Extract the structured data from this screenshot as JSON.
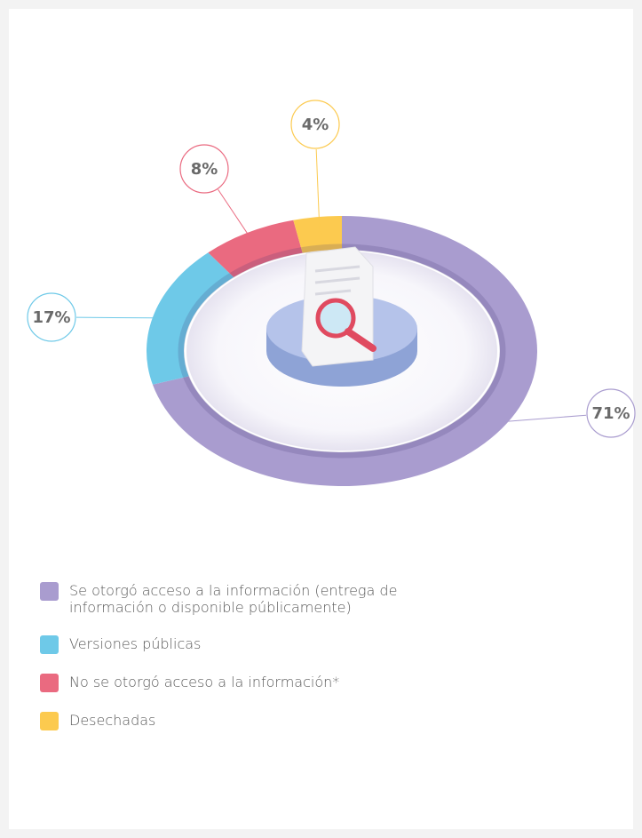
{
  "chart_data": {
    "type": "donut",
    "categories": [
      "Se otorgó acceso a la información (entrega de información o disponible públicamente)",
      "Versiones públicas",
      "No se otorgó acceso a la información*",
      "Desechadas"
    ],
    "values": [
      71,
      17,
      8,
      4
    ],
    "value_labels": [
      "71%",
      "17%",
      "8%",
      "4%"
    ],
    "colors": [
      "#a99ccf",
      "#6ec9e8",
      "#ea6a80",
      "#fcca4f"
    ]
  }
}
